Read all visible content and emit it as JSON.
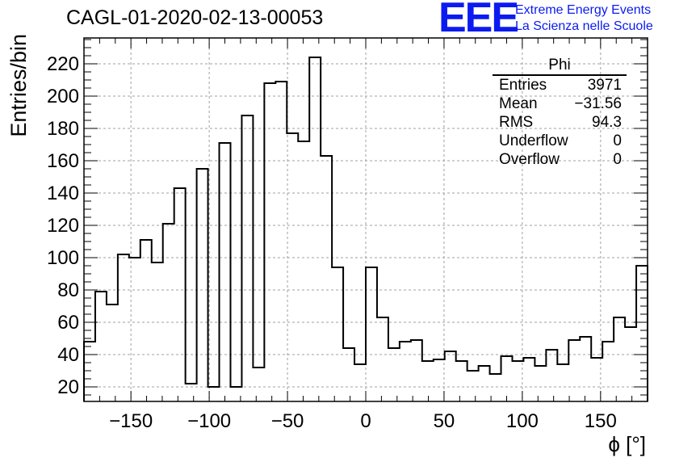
{
  "header": {
    "title": "CAGL-01-2020-02-13-00053",
    "logo_text": "EEE",
    "tagline_1": "Extreme Energy Events",
    "tagline_2": "La Scienza nelle Scuole"
  },
  "stats_box": {
    "name": "Phi",
    "rows": [
      {
        "label": "Entries",
        "value": "3971"
      },
      {
        "label": "Mean",
        "value": "−31.56"
      },
      {
        "label": "RMS",
        "value": "94.3"
      },
      {
        "label": "Underflow",
        "value": "0"
      },
      {
        "label": "Overflow",
        "value": "0"
      }
    ]
  },
  "colors": {
    "histogram_line": "#000000",
    "grid": "#a0a0a0",
    "logo": "#0b1bf0"
  },
  "chart_data": {
    "type": "bar",
    "style": "step-histogram",
    "xlabel": "ϕ [°]",
    "ylabel": "Entries/bin",
    "xlim": [
      -180,
      180
    ],
    "ylim": [
      11,
      236
    ],
    "grid": true,
    "x_ticks": [
      -150,
      -100,
      -50,
      0,
      50,
      100,
      150
    ],
    "y_ticks": [
      20,
      40,
      60,
      80,
      100,
      120,
      140,
      160,
      180,
      200,
      220
    ],
    "bin_width": 7.2,
    "bin_edges_start": -180,
    "values": [
      48,
      79,
      71,
      102,
      100,
      111,
      97,
      121,
      143,
      22,
      155,
      20,
      171,
      20,
      188,
      32,
      208,
      209,
      177,
      172,
      224,
      163,
      94,
      44,
      34,
      94,
      63,
      44,
      48,
      49,
      36,
      37,
      42,
      36,
      30,
      33,
      28,
      39,
      36,
      38,
      33,
      43,
      34,
      49,
      51,
      38,
      48,
      63,
      57,
      95
    ]
  }
}
